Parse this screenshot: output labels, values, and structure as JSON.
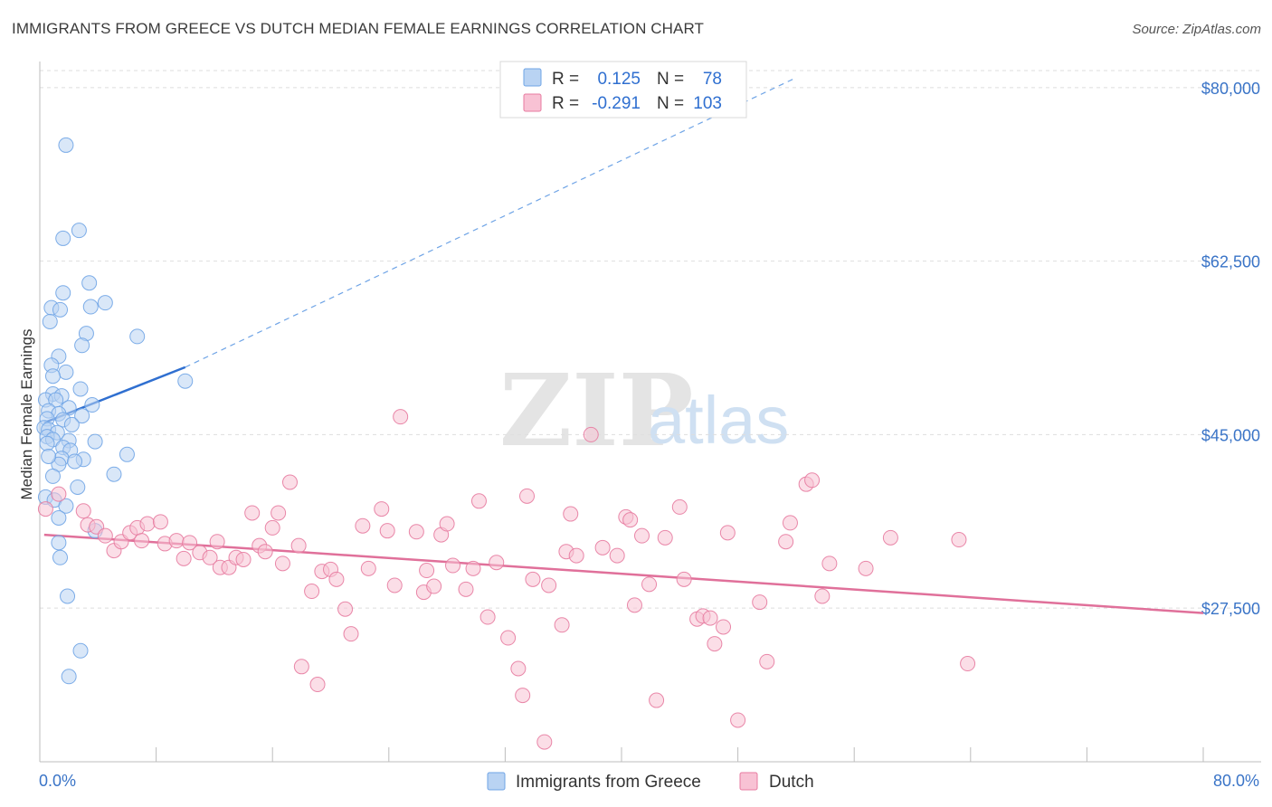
{
  "title": "IMMIGRANTS FROM GREECE VS DUTCH MEDIAN FEMALE EARNINGS CORRELATION CHART",
  "source": "Source: ZipAtlas.com",
  "watermark": {
    "zip": "ZIP",
    "atlas": "atlas"
  },
  "legend": {
    "r_label": "R =",
    "n_label": "N =",
    "series": [
      {
        "name": "Immigrants from Greece",
        "r": "0.125",
        "n": "78",
        "color": "#6fa4e6",
        "fill": "#b9d3f3"
      },
      {
        "name": "Dutch",
        "r": "-0.291",
        "n": "103",
        "color": "#e77ba0",
        "fill": "#f8c2d4"
      }
    ]
  },
  "chart_data": {
    "type": "scatter",
    "title": "IMMIGRANTS FROM GREECE VS DUTCH MEDIAN FEMALE EARNINGS CORRELATION CHART",
    "xlabel": "",
    "ylabel": "Median Female Earnings",
    "xlim": [
      0,
      80
    ],
    "ylim": [
      12000,
      83000
    ],
    "x_tick_labels": {
      "left": "0.0%",
      "right": "80.0%"
    },
    "y_ticks": [
      {
        "value": 27500,
        "label": "$27,500"
      },
      {
        "value": 45000,
        "label": "$45,000"
      },
      {
        "value": 62500,
        "label": "$62,500"
      },
      {
        "value": 80000,
        "label": "$80,000"
      }
    ],
    "series": [
      {
        "name": "Immigrants from Greece",
        "color": "#6fa4e6",
        "trend": {
          "solid": [
            [
              0.3,
              46200
            ],
            [
              10,
              51800
            ]
          ],
          "dashed": [
            [
              10,
              51800
            ],
            [
              52,
              81000
            ]
          ]
        },
        "points": [
          [
            1.8,
            74200
          ],
          [
            2.7,
            65600
          ],
          [
            1.6,
            64800
          ],
          [
            3.4,
            60300
          ],
          [
            1.6,
            59300
          ],
          [
            4.5,
            58300
          ],
          [
            3.5,
            57900
          ],
          [
            0.8,
            57800
          ],
          [
            1.4,
            57600
          ],
          [
            0.7,
            56400
          ],
          [
            3.2,
            55200
          ],
          [
            6.7,
            54900
          ],
          [
            2.9,
            54000
          ],
          [
            1.3,
            52900
          ],
          [
            0.8,
            52000
          ],
          [
            1.8,
            51300
          ],
          [
            0.9,
            50900
          ],
          [
            10.0,
            50400
          ],
          [
            2.8,
            49600
          ],
          [
            0.9,
            49100
          ],
          [
            1.5,
            48900
          ],
          [
            0.4,
            48500
          ],
          [
            1.1,
            48500
          ],
          [
            3.6,
            48000
          ],
          [
            2.0,
            47700
          ],
          [
            0.6,
            47400
          ],
          [
            1.3,
            47100
          ],
          [
            2.9,
            46900
          ],
          [
            0.5,
            46600
          ],
          [
            1.6,
            46500
          ],
          [
            2.2,
            46000
          ],
          [
            0.3,
            45700
          ],
          [
            0.6,
            45500
          ],
          [
            1.2,
            45200
          ],
          [
            0.5,
            44800
          ],
          [
            0.9,
            44500
          ],
          [
            2.0,
            44400
          ],
          [
            3.8,
            44300
          ],
          [
            0.5,
            44100
          ],
          [
            1.6,
            43700
          ],
          [
            2.1,
            43400
          ],
          [
            6.0,
            43000
          ],
          [
            1.5,
            42600
          ],
          [
            3.0,
            42500
          ],
          [
            2.4,
            42300
          ],
          [
            1.3,
            42000
          ],
          [
            0.6,
            42800
          ],
          [
            5.1,
            41000
          ],
          [
            0.9,
            40800
          ],
          [
            2.6,
            39700
          ],
          [
            0.4,
            38700
          ],
          [
            1.0,
            38400
          ],
          [
            1.8,
            37800
          ],
          [
            1.3,
            36600
          ],
          [
            3.8,
            35300
          ],
          [
            1.3,
            34100
          ],
          [
            1.4,
            32600
          ],
          [
            1.9,
            28700
          ],
          [
            2.8,
            23200
          ],
          [
            2.0,
            20600
          ]
        ]
      },
      {
        "name": "Dutch",
        "color": "#e77ba0",
        "trend": {
          "solid": [
            [
              0.3,
              34900
            ],
            [
              80,
              27000
            ]
          ]
        },
        "points": [
          [
            0.4,
            37500
          ],
          [
            1.3,
            39000
          ],
          [
            3.0,
            37300
          ],
          [
            3.3,
            35900
          ],
          [
            3.9,
            35700
          ],
          [
            4.5,
            34800
          ],
          [
            5.1,
            33300
          ],
          [
            5.6,
            34200
          ],
          [
            6.2,
            35100
          ],
          [
            6.7,
            35600
          ],
          [
            7.0,
            34300
          ],
          [
            7.4,
            36000
          ],
          [
            8.3,
            36200
          ],
          [
            8.6,
            34000
          ],
          [
            9.4,
            34300
          ],
          [
            9.9,
            32500
          ],
          [
            10.3,
            34100
          ],
          [
            11.0,
            33100
          ],
          [
            11.7,
            32600
          ],
          [
            12.2,
            34200
          ],
          [
            12.4,
            31600
          ],
          [
            13.0,
            31600
          ],
          [
            13.5,
            32600
          ],
          [
            14.0,
            32400
          ],
          [
            14.6,
            37100
          ],
          [
            15.1,
            33800
          ],
          [
            15.5,
            33200
          ],
          [
            16.0,
            35600
          ],
          [
            16.4,
            37100
          ],
          [
            16.7,
            32000
          ],
          [
            17.2,
            40200
          ],
          [
            17.8,
            33800
          ],
          [
            18.0,
            21600
          ],
          [
            18.7,
            29200
          ],
          [
            19.1,
            19800
          ],
          [
            19.4,
            31200
          ],
          [
            20.0,
            31400
          ],
          [
            20.4,
            30400
          ],
          [
            21.0,
            27400
          ],
          [
            21.4,
            24900
          ],
          [
            22.2,
            35800
          ],
          [
            22.6,
            31500
          ],
          [
            23.5,
            37500
          ],
          [
            23.9,
            35300
          ],
          [
            24.4,
            29800
          ],
          [
            24.8,
            46800
          ],
          [
            25.9,
            35200
          ],
          [
            26.4,
            29100
          ],
          [
            26.6,
            31300
          ],
          [
            27.1,
            29700
          ],
          [
            27.6,
            34900
          ],
          [
            28.0,
            36000
          ],
          [
            28.4,
            31800
          ],
          [
            29.3,
            29400
          ],
          [
            29.8,
            31500
          ],
          [
            30.2,
            38300
          ],
          [
            30.8,
            26600
          ],
          [
            31.4,
            32100
          ],
          [
            32.2,
            24500
          ],
          [
            32.9,
            21400
          ],
          [
            33.2,
            18700
          ],
          [
            33.5,
            38800
          ],
          [
            33.9,
            30400
          ],
          [
            34.7,
            14000
          ],
          [
            35.0,
            29800
          ],
          [
            35.9,
            25800
          ],
          [
            36.2,
            33200
          ],
          [
            36.5,
            37000
          ],
          [
            36.9,
            32800
          ],
          [
            37.9,
            45000
          ],
          [
            38.7,
            33600
          ],
          [
            39.7,
            32800
          ],
          [
            40.3,
            36700
          ],
          [
            40.6,
            36400
          ],
          [
            40.9,
            27800
          ],
          [
            41.4,
            34800
          ],
          [
            41.9,
            29900
          ],
          [
            42.4,
            18200
          ],
          [
            43.0,
            34600
          ],
          [
            44.0,
            37700
          ],
          [
            44.3,
            30400
          ],
          [
            45.2,
            26400
          ],
          [
            45.6,
            26700
          ],
          [
            46.1,
            26500
          ],
          [
            46.4,
            23900
          ],
          [
            47.0,
            25600
          ],
          [
            47.3,
            35100
          ],
          [
            48.0,
            16200
          ],
          [
            49.5,
            28100
          ],
          [
            50.0,
            22100
          ],
          [
            51.3,
            34200
          ],
          [
            51.6,
            36100
          ],
          [
            52.7,
            40000
          ],
          [
            53.1,
            40400
          ],
          [
            53.8,
            28700
          ],
          [
            54.3,
            32000
          ],
          [
            56.8,
            31500
          ],
          [
            58.5,
            34600
          ],
          [
            63.2,
            34400
          ],
          [
            63.8,
            21900
          ]
        ]
      }
    ]
  }
}
